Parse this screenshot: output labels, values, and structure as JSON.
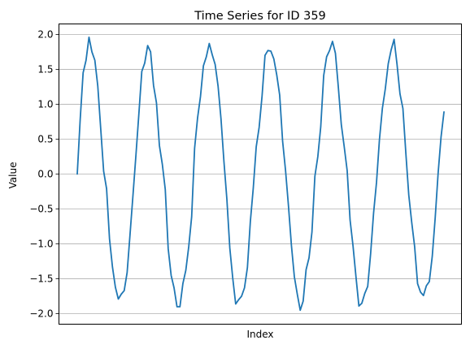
{
  "chart_data": {
    "type": "line",
    "title": "Time Series for ID 359",
    "xlabel": "Index",
    "ylabel": "Value",
    "ylim": [
      -2.15,
      2.15
    ],
    "yticks": [
      -2.0,
      -1.5,
      -1.0,
      -0.5,
      0.0,
      0.5,
      1.0,
      1.5,
      2.0
    ],
    "ytick_labels": [
      "−2.0",
      "−1.5",
      "−1.0",
      "−0.5",
      "0.0",
      "0.5",
      "1.0",
      "1.5",
      "2.0"
    ],
    "grid": "horizontal",
    "series_color": "#1f77b4",
    "series": [
      {
        "values": [
          0.0,
          0.78,
          1.45,
          1.63,
          1.96,
          1.75,
          1.63,
          1.26,
          0.65,
          0.04,
          -0.21,
          -0.93,
          -1.33,
          -1.62,
          -1.79,
          -1.72,
          -1.67,
          -1.41,
          -0.86,
          -0.3,
          0.27,
          0.86,
          1.47,
          1.59,
          1.84,
          1.75,
          1.27,
          1.02,
          0.41,
          0.14,
          -0.22,
          -1.07,
          -1.45,
          -1.63,
          -1.9,
          -1.9,
          -1.57,
          -1.38,
          -1.04,
          -0.61,
          0.37,
          0.8,
          1.11,
          1.55,
          1.68,
          1.87,
          1.71,
          1.57,
          1.26,
          0.79,
          0.18,
          -0.36,
          -1.06,
          -1.49,
          -1.86,
          -1.8,
          -1.75,
          -1.63,
          -1.34,
          -0.68,
          -0.2,
          0.39,
          0.67,
          1.12,
          1.7,
          1.77,
          1.76,
          1.65,
          1.42,
          1.13,
          0.47,
          0.05,
          -0.46,
          -1.02,
          -1.47,
          -1.72,
          -1.95,
          -1.82,
          -1.37,
          -1.2,
          -0.83,
          -0.03,
          0.25,
          0.68,
          1.41,
          1.68,
          1.77,
          1.9,
          1.73,
          1.24,
          0.71,
          0.39,
          0.05,
          -0.66,
          -1.03,
          -1.47,
          -1.89,
          -1.85,
          -1.71,
          -1.61,
          -1.14,
          -0.56,
          -0.12,
          0.49,
          0.94,
          1.22,
          1.58,
          1.78,
          1.93,
          1.57,
          1.15,
          0.94,
          0.3,
          -0.3,
          -0.69,
          -1.04,
          -1.57,
          -1.69,
          -1.74,
          -1.6,
          -1.54,
          -1.18,
          -0.63,
          0.01,
          0.53,
          0.89
        ]
      }
    ]
  }
}
